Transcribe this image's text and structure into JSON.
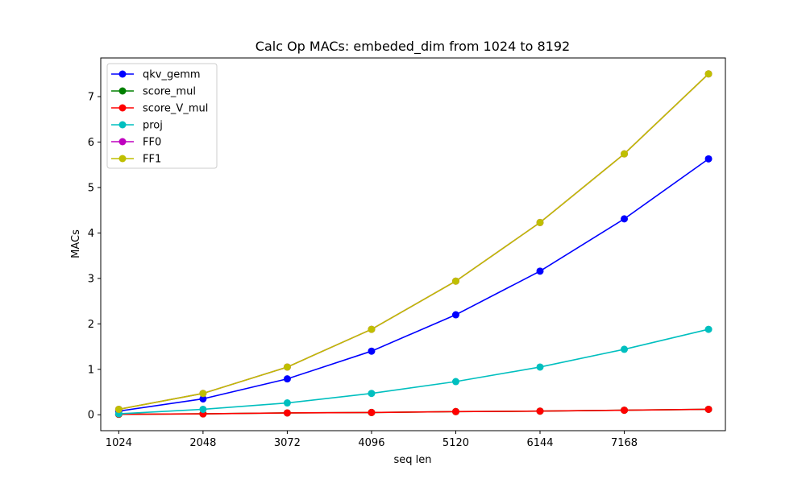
{
  "chart_data": {
    "type": "line",
    "title": "Calc Op MACs: embeded_dim from 1024 to 8192",
    "xlabel": "seq len",
    "ylabel": "MACs",
    "x": [
      1024,
      2048,
      3072,
      4096,
      5120,
      6144,
      7168,
      8192
    ],
    "xticks": [
      "1024",
      "2048",
      "3072",
      "4096",
      "5120",
      "6144",
      "7168"
    ],
    "yticks": [
      "0",
      "1",
      "2",
      "3",
      "4",
      "5",
      "6",
      "7"
    ],
    "xlim": [
      805,
      8397
    ],
    "ylim": [
      -0.35,
      7.85
    ],
    "grid": false,
    "legend_position": "top-left",
    "series": [
      {
        "name": "qkv_gemm",
        "color": "#0000ff",
        "values": [
          0.08,
          0.35,
          0.79,
          1.4,
          2.2,
          3.16,
          4.31,
          5.63
        ]
      },
      {
        "name": "score_mul",
        "color": "#008000",
        "values": [
          0.01,
          0.02,
          0.04,
          0.05,
          0.07,
          0.08,
          0.1,
          0.12
        ]
      },
      {
        "name": "score_V_mul",
        "color": "#ff0000",
        "values": [
          0.01,
          0.02,
          0.04,
          0.05,
          0.07,
          0.08,
          0.1,
          0.12
        ]
      },
      {
        "name": "proj",
        "color": "#00bfbf",
        "values": [
          0.02,
          0.12,
          0.26,
          0.47,
          0.73,
          1.05,
          1.44,
          1.88
        ]
      },
      {
        "name": "FF0",
        "color": "#bf00bf",
        "values": [
          0.12,
          0.47,
          1.05,
          1.88,
          2.94,
          4.23,
          5.74,
          7.5
        ]
      },
      {
        "name": "FF1",
        "color": "#bfbf00",
        "values": [
          0.12,
          0.47,
          1.05,
          1.88,
          2.94,
          4.23,
          5.74,
          7.5
        ]
      }
    ]
  }
}
